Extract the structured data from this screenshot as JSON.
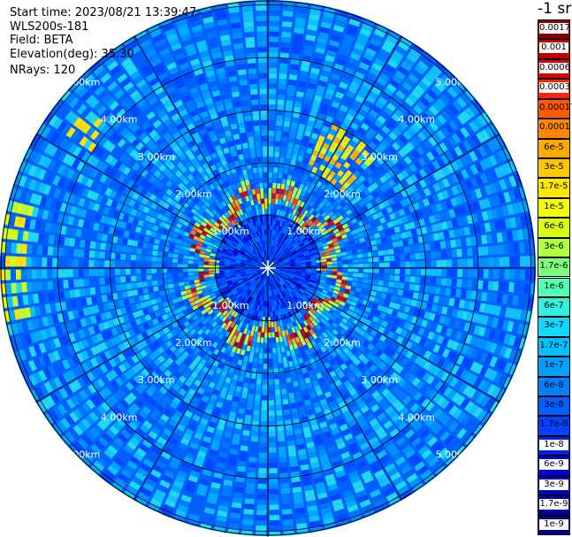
{
  "header": {
    "start_time": "Start time: 2023/08/21 13:39:47",
    "instrument": "WLS200s-181",
    "field": "Field: BETA",
    "elevation": "Elevation(deg): 35.30",
    "nrays": "NRays: 120"
  },
  "colorbar": {
    "unit_label": "-1 sr",
    "levels": [
      "0.0017",
      "0.001",
      "0.0006",
      "0.0003",
      "0.00017",
      "0.0001",
      "6e-5",
      "3e-5",
      "1.7e-5",
      "1e-5",
      "6e-6",
      "3e-6",
      "1.7e-6",
      "1e-6",
      "6e-7",
      "3e-7",
      "1.7e-7",
      "1e-7",
      "6e-8",
      "3e-8",
      "1.7e-8",
      "1e-8",
      "6e-9",
      "3e-9",
      "1.7e-9",
      "1e-9"
    ],
    "colors": [
      "#8b0000",
      "#c00000",
      "#e00000",
      "#ff2000",
      "#ff5a00",
      "#ff8800",
      "#ffaa00",
      "#ffc800",
      "#ffe600",
      "#f5ff00",
      "#d8ff10",
      "#b0ff40",
      "#7cff7c",
      "#50ffb0",
      "#30f0e0",
      "#10d8ff",
      "#00c0ff",
      "#00a0ff",
      "#0080ff",
      "#0060ff",
      "#0040ff",
      "#0020f0",
      "#0000e0",
      "#0000c0",
      "#0000a0",
      "#000080"
    ]
  },
  "chart_data": {
    "type": "heatmap",
    "projection": "polar (PPI scan)",
    "field": "BETA",
    "rays": 120,
    "range_rings_km": [
      1,
      2,
      3,
      4,
      5
    ],
    "ring_labels": [
      "1.00km",
      "2.00km",
      "3.00km",
      "4.00km",
      "5.00km"
    ],
    "colorscale": "log, 1e-9 to 0.0017 sr-1",
    "features": [
      {
        "description": "high backscatter ring (1.7e-5 to 1e-4)",
        "range_km": [
          1.0,
          1.5
        ]
      },
      {
        "description": "high backscatter patch NE",
        "range_km": [
          2.0,
          3.0
        ]
      },
      {
        "description": "moderate backscatter band W",
        "range_km": [
          4.5,
          5.3
        ]
      }
    ]
  }
}
